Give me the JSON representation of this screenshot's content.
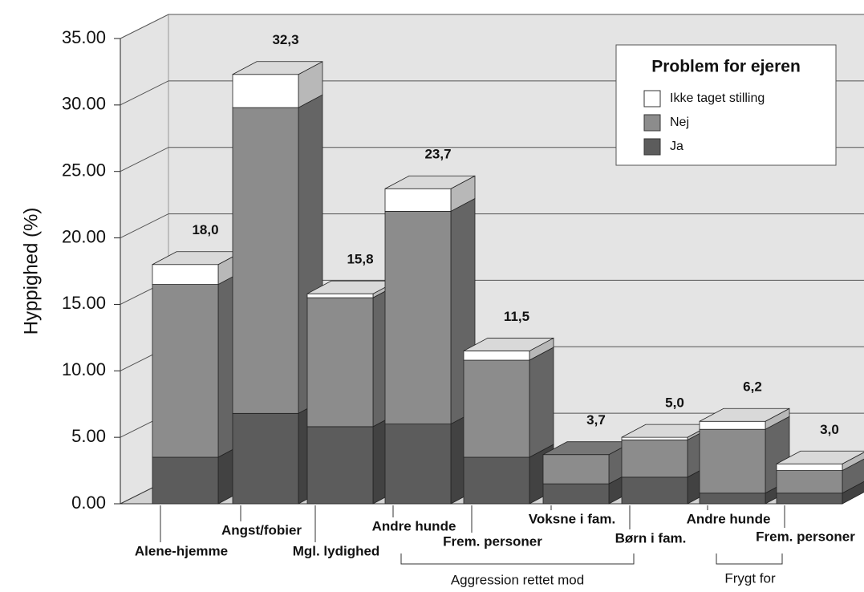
{
  "chart_data": {
    "type": "bar3d_stacked",
    "ylabel": "Hyppighed (%)",
    "categories": [
      "Alene-hjemme",
      "Angst/fobier",
      "Mgl. lydighed",
      "Andre hunde",
      "Frem. personer",
      "Voksne i fam.",
      "Børn i fam.",
      "Andre hunde",
      "Frem. personer"
    ],
    "groups": [
      "Aggression rettet mod",
      "Frygt for"
    ],
    "legend_title": "Problem for ejeren",
    "series": [
      {
        "name": "Ikke taget stilling",
        "color": "#ffffff",
        "values": [
          1.5,
          2.5,
          0.3,
          1.7,
          0.7,
          0,
          0.2,
          0.6,
          0.5
        ]
      },
      {
        "name": "Nej",
        "color": "#8c8c8c",
        "values": [
          13.0,
          23.0,
          9.7,
          16.0,
          7.3,
          2.2,
          2.8,
          4.8,
          1.7
        ]
      },
      {
        "name": "Ja",
        "color": "#5c5c5c",
        "values": [
          3.5,
          6.8,
          5.8,
          6.0,
          3.5,
          1.5,
          2.0,
          0.8,
          0.8
        ]
      }
    ],
    "totals": [
      18.0,
      32.3,
      15.8,
      23.7,
      11.5,
      3.7,
      5.0,
      6.2,
      3.0
    ],
    "total_labels": [
      "18,0",
      "32,3",
      "15,8",
      "23,7",
      "11,5",
      "3,7",
      "5,0",
      "6,2",
      "3,0"
    ],
    "ylim": [
      0,
      35
    ],
    "yticks": [
      {
        "value": 0,
        "label": "0.00"
      },
      {
        "value": 5,
        "label": "5.00"
      },
      {
        "value": 10,
        "label": "10.00"
      },
      {
        "value": 15,
        "label": "15.00"
      },
      {
        "value": 20,
        "label": "20.00"
      },
      {
        "value": 25,
        "label": "25.00"
      },
      {
        "value": 30,
        "label": "30.00"
      },
      {
        "value": 35,
        "label": "35.00"
      }
    ],
    "grid": true,
    "legend": "upper right"
  }
}
